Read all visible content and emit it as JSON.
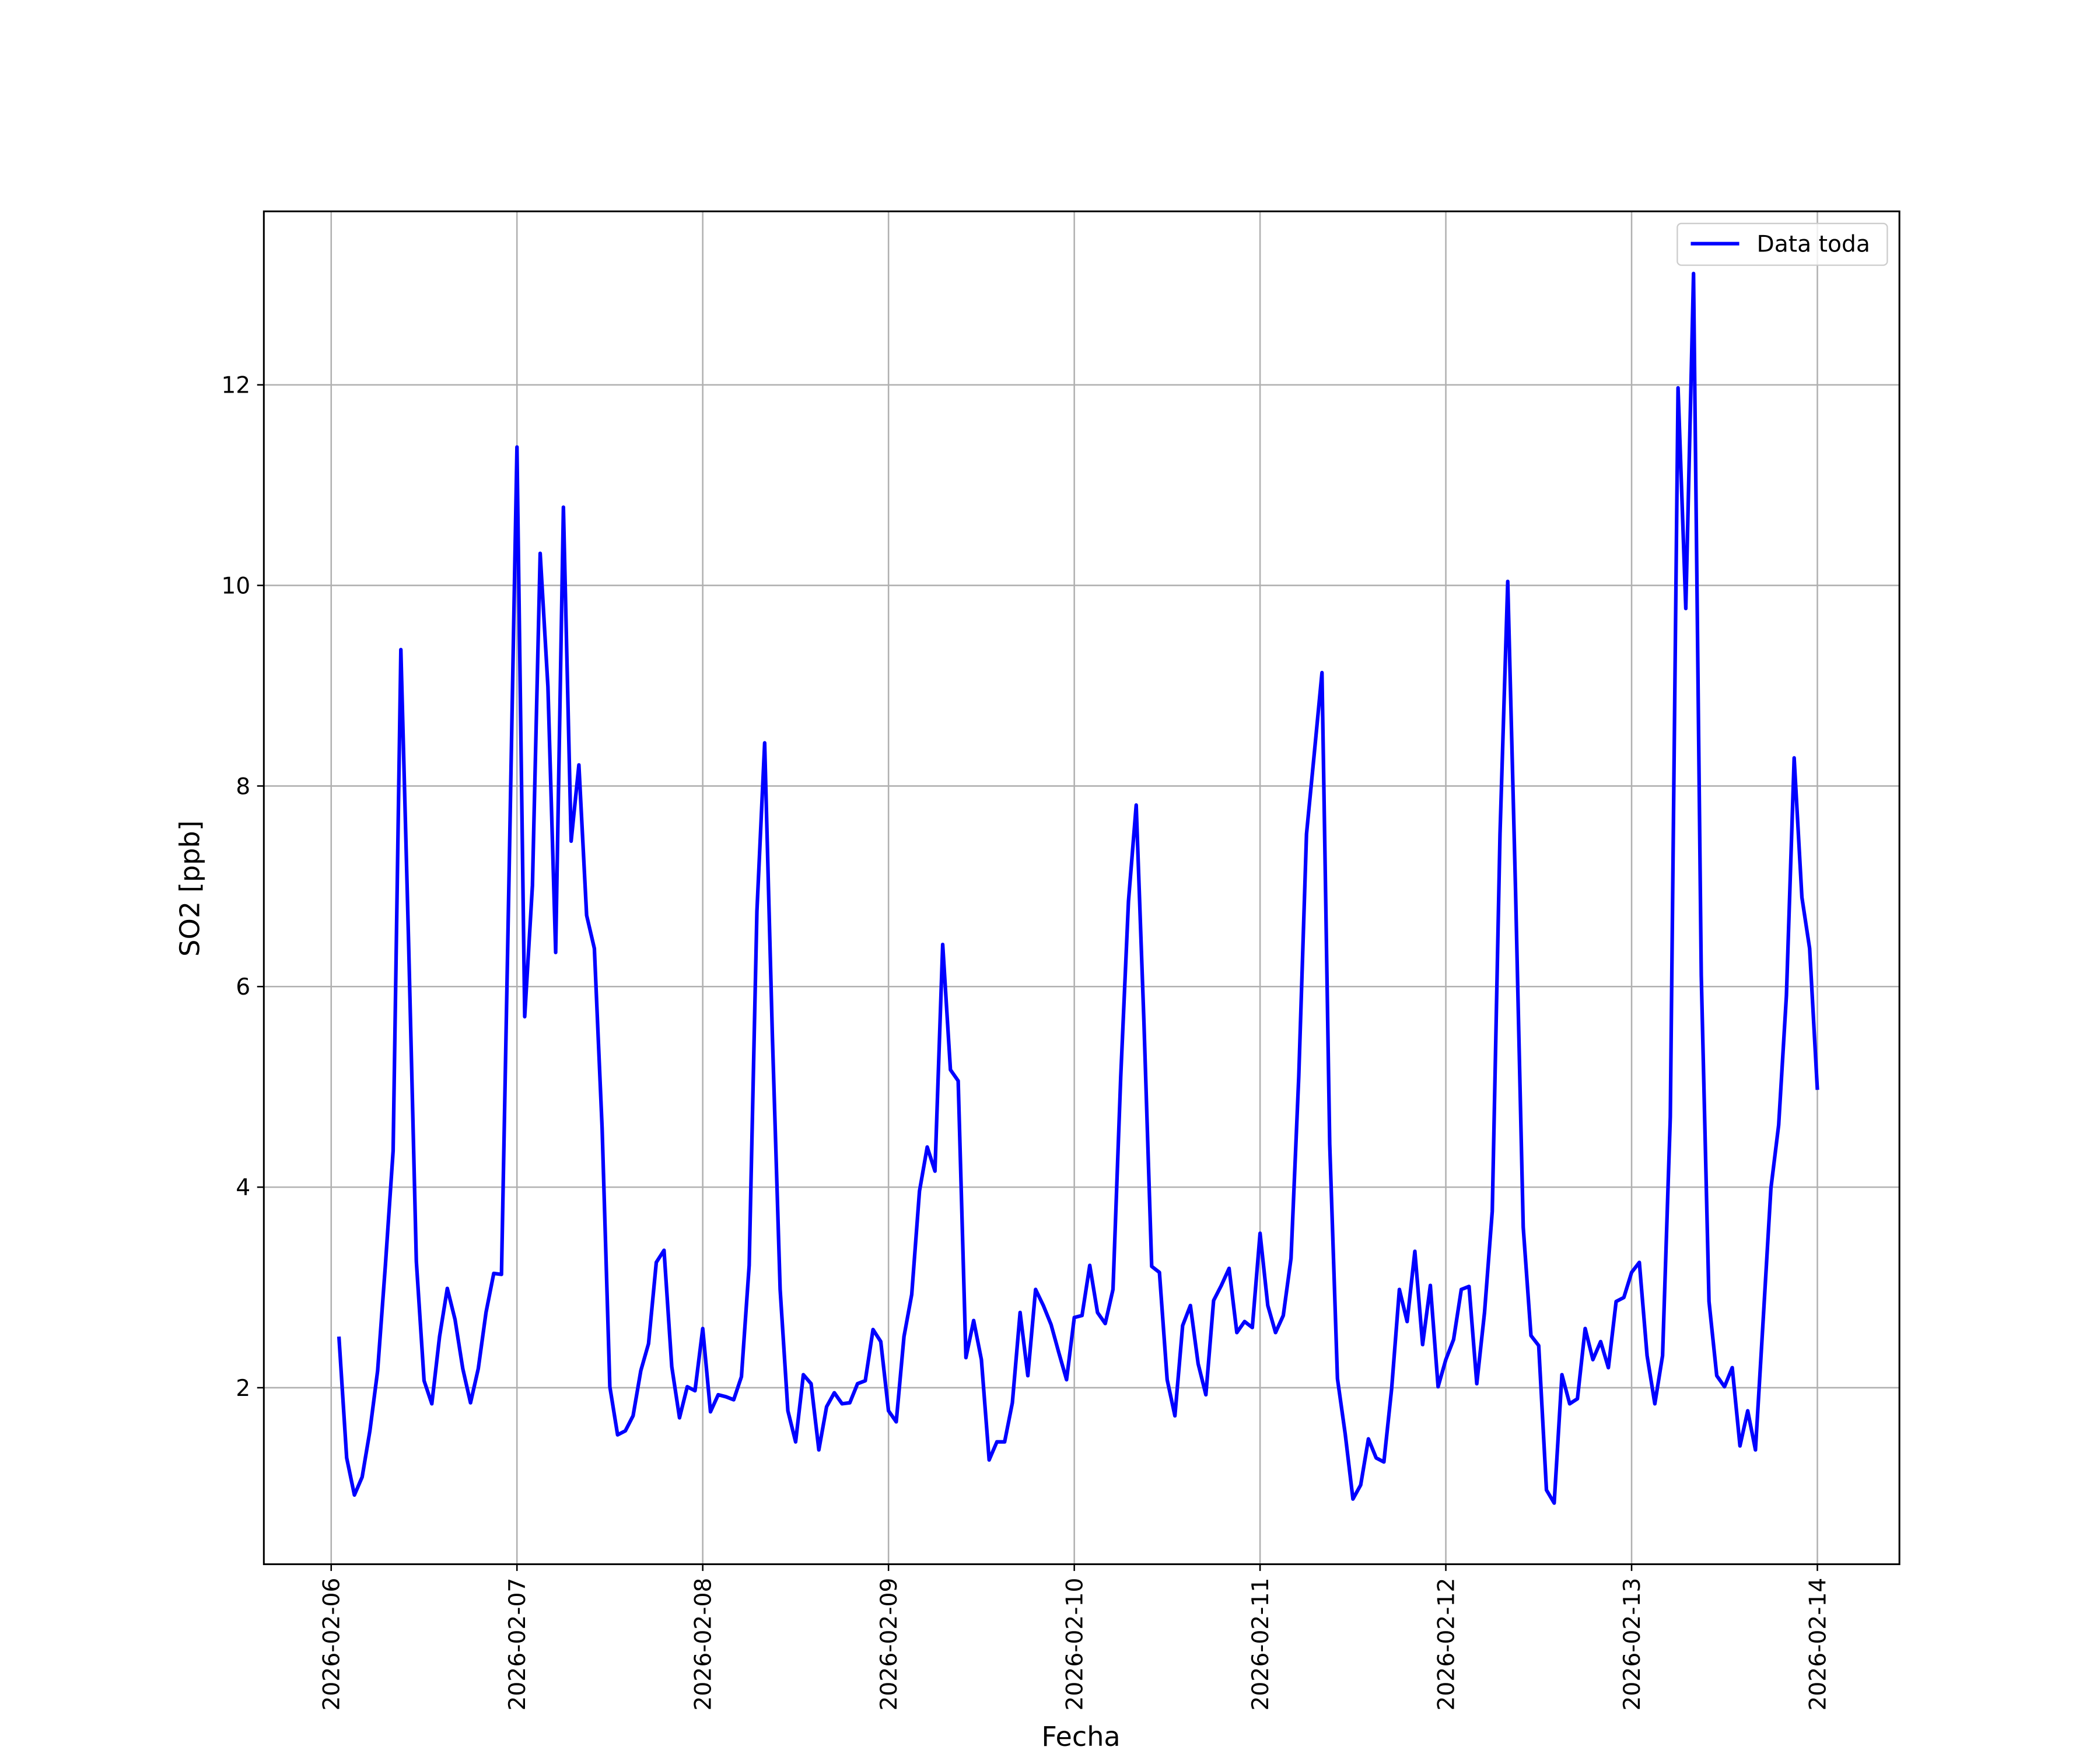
{
  "chart_data": {
    "type": "line",
    "xlabel": "Fecha",
    "ylabel": "SO2 [ppb]",
    "x": [
      "2026-02-06T01:00",
      "2026-02-06T02:00",
      "2026-02-06T03:00",
      "2026-02-06T04:00",
      "2026-02-06T05:00",
      "2026-02-06T06:00",
      "2026-02-06T07:00",
      "2026-02-06T08:00",
      "2026-02-06T09:00",
      "2026-02-06T10:00",
      "2026-02-06T11:00",
      "2026-02-06T12:00",
      "2026-02-06T13:00",
      "2026-02-06T14:00",
      "2026-02-06T15:00",
      "2026-02-06T16:00",
      "2026-02-06T17:00",
      "2026-02-06T18:00",
      "2026-02-06T19:00",
      "2026-02-06T20:00",
      "2026-02-06T21:00",
      "2026-02-06T22:00",
      "2026-02-06T23:00",
      "2026-02-07T00:00",
      "2026-02-07T01:00",
      "2026-02-07T02:00",
      "2026-02-07T03:00",
      "2026-02-07T04:00",
      "2026-02-07T05:00",
      "2026-02-07T06:00",
      "2026-02-07T07:00",
      "2026-02-07T08:00",
      "2026-02-07T09:00",
      "2026-02-07T10:00",
      "2026-02-07T11:00",
      "2026-02-07T12:00",
      "2026-02-07T13:00",
      "2026-02-07T14:00",
      "2026-02-07T15:00",
      "2026-02-07T16:00",
      "2026-02-07T17:00",
      "2026-02-07T18:00",
      "2026-02-07T19:00",
      "2026-02-07T20:00",
      "2026-02-07T21:00",
      "2026-02-07T22:00",
      "2026-02-07T23:00",
      "2026-02-08T00:00",
      "2026-02-08T01:00",
      "2026-02-08T02:00",
      "2026-02-08T03:00",
      "2026-02-08T04:00",
      "2026-02-08T05:00",
      "2026-02-08T06:00",
      "2026-02-08T07:00",
      "2026-02-08T08:00",
      "2026-02-08T09:00",
      "2026-02-08T10:00",
      "2026-02-08T11:00",
      "2026-02-08T12:00",
      "2026-02-08T13:00",
      "2026-02-08T14:00",
      "2026-02-08T15:00",
      "2026-02-08T16:00",
      "2026-02-08T17:00",
      "2026-02-08T18:00",
      "2026-02-08T19:00",
      "2026-02-08T20:00",
      "2026-02-08T21:00",
      "2026-02-08T22:00",
      "2026-02-08T23:00",
      "2026-02-09T00:00",
      "2026-02-09T01:00",
      "2026-02-09T02:00",
      "2026-02-09T03:00",
      "2026-02-09T04:00",
      "2026-02-09T05:00",
      "2026-02-09T06:00",
      "2026-02-09T07:00",
      "2026-02-09T08:00",
      "2026-02-09T09:00",
      "2026-02-09T10:00",
      "2026-02-09T11:00",
      "2026-02-09T12:00",
      "2026-02-09T13:00",
      "2026-02-09T14:00",
      "2026-02-09T15:00",
      "2026-02-09T16:00",
      "2026-02-09T17:00",
      "2026-02-09T18:00",
      "2026-02-09T19:00",
      "2026-02-09T20:00",
      "2026-02-09T21:00",
      "2026-02-09T22:00",
      "2026-02-09T23:00",
      "2026-02-10T00:00",
      "2026-02-10T01:00",
      "2026-02-10T02:00",
      "2026-02-10T03:00",
      "2026-02-10T04:00",
      "2026-02-10T05:00",
      "2026-02-10T06:00",
      "2026-02-10T07:00",
      "2026-02-10T08:00",
      "2026-02-10T09:00",
      "2026-02-10T10:00",
      "2026-02-10T11:00",
      "2026-02-10T12:00",
      "2026-02-10T13:00",
      "2026-02-10T14:00",
      "2026-02-10T15:00",
      "2026-02-10T16:00",
      "2026-02-10T17:00",
      "2026-02-10T18:00",
      "2026-02-10T19:00",
      "2026-02-10T20:00",
      "2026-02-10T21:00",
      "2026-02-10T22:00",
      "2026-02-10T23:00",
      "2026-02-11T00:00",
      "2026-02-11T01:00",
      "2026-02-11T02:00",
      "2026-02-11T03:00",
      "2026-02-11T04:00",
      "2026-02-11T05:00",
      "2026-02-11T06:00",
      "2026-02-11T07:00",
      "2026-02-11T08:00",
      "2026-02-11T09:00",
      "2026-02-11T10:00",
      "2026-02-11T11:00",
      "2026-02-11T12:00",
      "2026-02-11T13:00",
      "2026-02-11T14:00",
      "2026-02-11T15:00",
      "2026-02-11T16:00",
      "2026-02-11T17:00",
      "2026-02-11T18:00",
      "2026-02-11T19:00",
      "2026-02-11T20:00",
      "2026-02-11T21:00",
      "2026-02-11T22:00",
      "2026-02-11T23:00",
      "2026-02-12T00:00",
      "2026-02-12T01:00",
      "2026-02-12T02:00",
      "2026-02-12T03:00",
      "2026-02-12T04:00",
      "2026-02-12T05:00",
      "2026-02-12T06:00",
      "2026-02-12T07:00",
      "2026-02-12T08:00",
      "2026-02-12T09:00",
      "2026-02-12T10:00",
      "2026-02-12T11:00",
      "2026-02-12T12:00",
      "2026-02-12T13:00",
      "2026-02-12T14:00",
      "2026-02-12T15:00",
      "2026-02-12T16:00",
      "2026-02-12T17:00",
      "2026-02-12T18:00",
      "2026-02-12T19:00",
      "2026-02-12T20:00",
      "2026-02-12T21:00",
      "2026-02-12T22:00",
      "2026-02-12T23:00",
      "2026-02-13T00:00",
      "2026-02-13T01:00",
      "2026-02-13T02:00",
      "2026-02-13T03:00",
      "2026-02-13T04:00",
      "2026-02-13T05:00",
      "2026-02-13T06:00",
      "2026-02-13T07:00",
      "2026-02-13T08:00",
      "2026-02-13T09:00",
      "2026-02-13T10:00",
      "2026-02-13T11:00",
      "2026-02-13T12:00",
      "2026-02-13T13:00",
      "2026-02-13T14:00",
      "2026-02-13T15:00",
      "2026-02-13T16:00",
      "2026-02-13T17:00",
      "2026-02-13T18:00",
      "2026-02-13T19:00",
      "2026-02-13T20:00",
      "2026-02-13T21:00",
      "2026-02-13T22:00",
      "2026-02-13T23:00",
      "2026-02-14T00:00"
    ],
    "series": [
      {
        "name": "Data toda",
        "color": "#0000ff",
        "values": [
          2.51,
          1.3,
          0.93,
          1.11,
          1.57,
          2.17,
          3.22,
          4.36,
          9.36,
          6.44,
          3.26,
          2.07,
          1.84,
          2.51,
          2.99,
          2.68,
          2.19,
          1.85,
          2.19,
          2.75,
          3.14,
          3.13,
          7.2,
          11.38,
          5.7,
          7.01,
          10.32,
          8.99,
          6.34,
          10.78,
          7.45,
          8.21,
          6.71,
          6.38,
          4.59,
          2.01,
          1.53,
          1.57,
          1.72,
          2.17,
          2.44,
          3.25,
          3.37,
          2.21,
          1.7,
          2.01,
          1.97,
          2.59,
          1.76,
          1.93,
          1.91,
          1.88,
          2.11,
          3.22,
          6.75,
          8.43,
          5.5,
          2.98,
          1.77,
          1.46,
          2.13,
          2.04,
          1.38,
          1.81,
          1.95,
          1.84,
          1.85,
          2.04,
          2.07,
          2.58,
          2.46,
          1.77,
          1.66,
          2.51,
          2.93,
          3.96,
          4.4,
          4.16,
          6.42,
          5.17,
          5.06,
          2.3,
          2.67,
          2.28,
          1.28,
          1.46,
          1.46,
          1.85,
          2.75,
          2.12,
          2.98,
          2.82,
          2.63,
          2.35,
          2.08,
          2.7,
          2.72,
          3.22,
          2.75,
          2.64,
          2.98,
          5.1,
          6.85,
          7.81,
          5.64,
          3.21,
          3.15,
          2.08,
          1.72,
          2.62,
          2.82,
          2.24,
          1.93,
          2.87,
          3.02,
          3.19,
          2.55,
          2.66,
          2.6,
          3.54,
          2.82,
          2.55,
          2.72,
          3.29,
          5.1,
          7.52,
          8.32,
          9.13,
          4.43,
          2.09,
          1.54,
          0.89,
          1.03,
          1.49,
          1.3,
          1.26,
          1.99,
          2.98,
          2.66,
          3.36,
          2.43,
          3.02,
          2.01,
          2.28,
          2.48,
          2.98,
          3.01,
          2.04,
          2.75,
          3.76,
          7.52,
          10.04,
          6.98,
          3.6,
          2.52,
          2.42,
          0.98,
          0.85,
          2.13,
          1.84,
          1.89,
          2.59,
          2.28,
          2.46,
          2.2,
          2.86,
          2.9,
          3.15,
          3.25,
          2.32,
          1.84,
          2.32,
          4.7,
          11.97,
          9.77,
          13.11,
          6.11,
          2.86,
          2.12,
          2.01,
          2.2,
          1.42,
          1.77,
          1.38,
          2.68,
          3.99,
          4.62,
          5.91,
          8.28,
          6.89,
          6.38,
          4.97
        ]
      }
    ],
    "xlim": [
      "2026-02-05T15:18",
      "2026-02-14T10:36"
    ],
    "xticks": [
      "2026-02-06",
      "2026-02-07",
      "2026-02-08",
      "2026-02-09",
      "2026-02-10",
      "2026-02-11",
      "2026-02-12",
      "2026-02-13",
      "2026-02-14"
    ],
    "ylim": [
      0.24,
      13.73
    ],
    "yticks": [
      2,
      4,
      6,
      8,
      10,
      12
    ],
    "grid": true,
    "legend": "upper right"
  }
}
